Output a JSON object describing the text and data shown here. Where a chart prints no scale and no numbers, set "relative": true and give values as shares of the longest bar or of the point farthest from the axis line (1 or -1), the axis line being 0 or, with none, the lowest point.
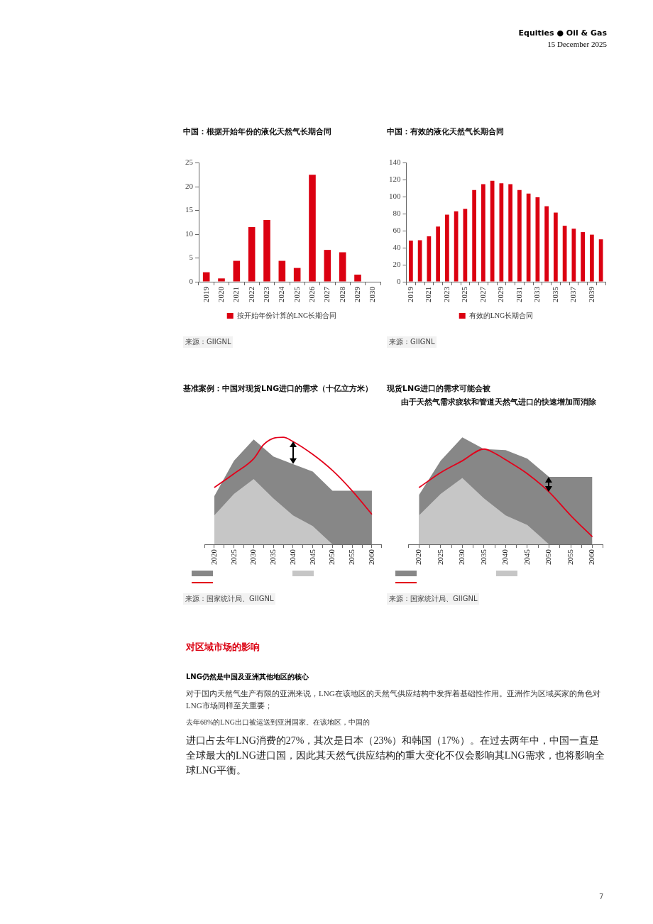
{
  "chart_data": [
    {
      "type": "other",
      "annotations": [
        "Equities ● Oil & Gas",
        "15 December 2025"
      ]
    },
    {
      "type": "bar",
      "title": "中国：根据开始年份的液化天然气长期合同",
      "categories": [
        "2019",
        "2020",
        "2021",
        "2022",
        "2023",
        "2024",
        "2025",
        "2026",
        "2027",
        "2028",
        "2029",
        "2030"
      ],
      "series": [
        {
          "name": "按开始年份计算的LNG长期合同",
          "color": "#db0011",
          "values": [
            2.0,
            0.7,
            4.4,
            11.5,
            13.0,
            4.4,
            2.9,
            22.5,
            6.7,
            6.2,
            1.5,
            0
          ]
        }
      ],
      "ylim": [
        0,
        25
      ],
      "yticks": [
        0,
        5,
        10,
        15,
        20,
        25
      ],
      "grid": false,
      "legend": "bottom",
      "annotations": [
        "来源：GIIGNL"
      ]
    },
    {
      "type": "bar",
      "title": "中国：有效的液化天然气长期合同",
      "categories": [
        "2019",
        null,
        "2021",
        null,
        "2023",
        null,
        "2025",
        null,
        "2027",
        null,
        "2029",
        null,
        "2031",
        null,
        "2033",
        null,
        "2035",
        null,
        "2037",
        null,
        "2039",
        null
      ],
      "series": [
        {
          "name": "有效的LNG长期合同",
          "color": "#db0011",
          "values": [
            48.5,
            49,
            53.5,
            65,
            79,
            83,
            86,
            108,
            115,
            119,
            116,
            115,
            108,
            104,
            99.5,
            89,
            81.5,
            66,
            62.5,
            58.5,
            55.5,
            50
          ]
        }
      ],
      "ylim": [
        0,
        140
      ],
      "yticks": [
        0,
        20,
        40,
        60,
        80,
        100,
        120,
        140
      ],
      "grid": false,
      "legend": "bottom",
      "annotations": [
        "来源：GIIGNL"
      ]
    },
    {
      "type": "area",
      "title": "基准案例：中国对现货LNG进口的需求（十亿立方米）",
      "relative": true,
      "grid": false,
      "xlim": [
        2017.5,
        2062.5
      ],
      "xticks": [
        {
          "value": 2017.5,
          "label": null
        },
        2020,
        {
          "value": 2022.5,
          "label": null
        },
        2025,
        {
          "value": 2027.5,
          "label": null
        },
        2030,
        {
          "value": 2032.5,
          "label": null
        },
        2035,
        {
          "value": 2037.5,
          "label": null
        },
        2040,
        {
          "value": 2042.5,
          "label": null
        },
        2045,
        {
          "value": 2047.5,
          "label": null
        },
        2050,
        {
          "value": 2052.5,
          "label": null
        },
        2055,
        {
          "value": 2057.5,
          "label": null
        },
        2060,
        {
          "value": 2062.5,
          "label": null
        }
      ],
      "series": [
        {
          "type": "area",
          "color": "#878787",
          "x": [
            2020,
            2025,
            2030,
            2035,
            2040,
            2045,
            2050,
            2055,
            2060
          ],
          "values": [
            0.45,
            0.78,
            0.98,
            0.82,
            0.75,
            0.68,
            0.5,
            0.5,
            0.5
          ]
        },
        {
          "type": "area",
          "color": "#c6c6c6",
          "x": [
            2020,
            2025,
            2030,
            2035,
            2040,
            2045,
            2050
          ],
          "values": [
            0.27,
            0.47,
            0.61,
            0.43,
            0.27,
            0.17,
            0
          ]
        },
        {
          "type": "line",
          "color": "#e3001b",
          "x": [
            2020,
            2025,
            2030,
            2032.5,
            2035,
            2037.5,
            2040,
            2045,
            2050,
            2055,
            2060
          ],
          "values": [
            0.53,
            0.66,
            0.8,
            0.93,
            0.99,
            1,
            0.96,
            0.84,
            0.69,
            0.5,
            0.28
          ]
        }
      ],
      "annotations": [
        "来源：国家统计局、GIIGNL"
      ]
    },
    {
      "type": "area",
      "title": "现货LNG进口的需求可能会被",
      "subtitle": "由于天然气需求疲软和管道天然气进口的快速增加而消除",
      "relative": true,
      "grid": false,
      "xlim": [
        2017.5,
        2062.5
      ],
      "xticks": [
        {
          "value": 2017.5,
          "label": null
        },
        2020,
        {
          "value": 2022.5,
          "label": null
        },
        2025,
        {
          "value": 2027.5,
          "label": null
        },
        2030,
        {
          "value": 2032.5,
          "label": null
        },
        2035,
        {
          "value": 2037.5,
          "label": null
        },
        2040,
        {
          "value": 2042.5,
          "label": null
        },
        2045,
        {
          "value": 2047.5,
          "label": null
        },
        2050,
        {
          "value": 2052.5,
          "label": null
        },
        2055,
        {
          "value": 2057.5,
          "label": null
        },
        2060,
        {
          "value": 2062.5,
          "label": null
        }
      ],
      "series": [
        {
          "type": "area",
          "color": "#878787",
          "x": [
            2020,
            2025,
            2030,
            2035,
            2040,
            2045,
            2050,
            2055,
            2060
          ],
          "values": [
            0.46,
            0.78,
            1,
            0.89,
            0.88,
            0.8,
            0.63,
            0.63,
            0.63
          ]
        },
        {
          "type": "area",
          "color": "#c6c6c6",
          "x": [
            2020,
            2025,
            2030,
            2035,
            2040,
            2045,
            2050
          ],
          "values": [
            0.27,
            0.47,
            0.62,
            0.43,
            0.27,
            0.18,
            0
          ]
        },
        {
          "type": "line",
          "color": "#e3001b",
          "x": [
            2020,
            2025,
            2030,
            2035,
            2037.5,
            2040,
            2045,
            2050,
            2055,
            2060
          ],
          "values": [
            0.53,
            0.67,
            0.78,
            0.89,
            0.85,
            0.79,
            0.66,
            0.49,
            0.27,
            0.07
          ]
        }
      ],
      "annotations": [
        "来源：国家统计局、GIIGNL"
      ]
    },
    {
      "type": "other",
      "title": "对区域市场的影响",
      "annotations": [
        "LNG仍然是中国及亚洲其他地区的核心",
        "对于国内天然气生产有限的亚洲来说，LNG在该地区的天然气供应结构中发挥着基础性作用。亚洲作为区域买家的角色对LNG市场同样至关重要；",
        "去年68%的LNG出口被运送到亚洲国家。在该地区，中国的",
        "进口占去年LNG消费的27%，其次是日本（23%）和韩国（17%）。在过去两年中，中国一直是全球最大的LNG进口国，因此其天然气供应结构的重大变化不仅会影响其LNG需求，也将影响全球LNG平衡。",
        "7"
      ]
    }
  ]
}
